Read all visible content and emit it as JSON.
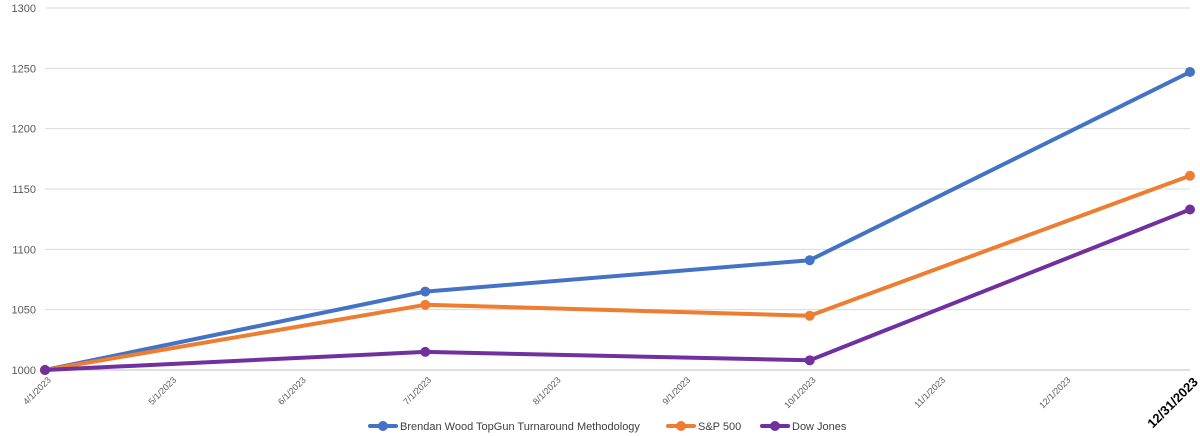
{
  "chart_data": {
    "type": "line",
    "title": "",
    "xlabel": "",
    "ylabel": "",
    "ylim": [
      1000,
      1300
    ],
    "yticks": [
      1000,
      1050,
      1100,
      1150,
      1200,
      1250,
      1300
    ],
    "x_dates": [
      "2023-04-01",
      "2023-05-01",
      "2023-06-01",
      "2023-07-01",
      "2023-08-01",
      "2023-09-01",
      "2023-10-01",
      "2023-11-01",
      "2023-12-01",
      "2023-12-31"
    ],
    "x_tick_labels": [
      "4/1/2023",
      "5/1/2023",
      "6/1/2023",
      "7/1/2023",
      "8/1/2023",
      "9/1/2023",
      "10/1/2023",
      "11/1/2023",
      "12/1/2023",
      "12/31/2023"
    ],
    "emphasized_tick": "12/31/2023",
    "grid": true,
    "legend_position": "bottom",
    "series": [
      {
        "name": "Brendan Wood TopGun Turnaround Methodology",
        "color": "#4472C4",
        "points": [
          {
            "x": "2023-04-01",
            "y": 1000
          },
          {
            "x": "2023-07-01",
            "y": 1065
          },
          {
            "x": "2023-10-01",
            "y": 1091
          },
          {
            "x": "2023-12-31",
            "y": 1247
          }
        ]
      },
      {
        "name": "S&P 500",
        "color": "#ED7D31",
        "points": [
          {
            "x": "2023-04-01",
            "y": 1000
          },
          {
            "x": "2023-07-01",
            "y": 1054
          },
          {
            "x": "2023-10-01",
            "y": 1045
          },
          {
            "x": "2023-12-31",
            "y": 1161
          }
        ]
      },
      {
        "name": "Dow Jones",
        "color": "#7030A0",
        "points": [
          {
            "x": "2023-04-01",
            "y": 1000
          },
          {
            "x": "2023-07-01",
            "y": 1015
          },
          {
            "x": "2023-10-01",
            "y": 1008
          },
          {
            "x": "2023-12-31",
            "y": 1133
          }
        ]
      }
    ]
  }
}
